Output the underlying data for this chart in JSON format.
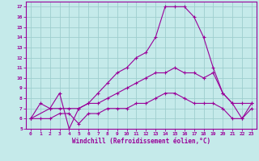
{
  "xlabel": "Windchill (Refroidissement éolien,°C)",
  "xlim": [
    -0.5,
    23.5
  ],
  "ylim": [
    5,
    17.5
  ],
  "xticks": [
    0,
    1,
    2,
    3,
    4,
    5,
    6,
    7,
    8,
    9,
    10,
    11,
    12,
    13,
    14,
    15,
    16,
    17,
    18,
    19,
    20,
    21,
    22,
    23
  ],
  "yticks": [
    5,
    6,
    7,
    8,
    9,
    10,
    11,
    12,
    13,
    14,
    15,
    16,
    17
  ],
  "background_color": "#c5eaea",
  "line_color": "#990099",
  "grid_color": "#9ecece",
  "line1_x": [
    0,
    1,
    2,
    3,
    4,
    5,
    6,
    7,
    8,
    9,
    10,
    11,
    12,
    13,
    14,
    15,
    16,
    17,
    18,
    19,
    20,
    21,
    22,
    23
  ],
  "line1_y": [
    6.0,
    7.5,
    7.0,
    8.5,
    5.0,
    7.0,
    7.5,
    8.5,
    9.5,
    10.5,
    11.0,
    12.0,
    12.5,
    14.0,
    17.0,
    17.0,
    17.0,
    16.0,
    14.0,
    11.0,
    8.5,
    7.5,
    6.0,
    7.5
  ],
  "line2_x": [
    0,
    2,
    3,
    4,
    5,
    6,
    7,
    8,
    9,
    10,
    11,
    12,
    13,
    14,
    15,
    16,
    17,
    18,
    19,
    20,
    21,
    22,
    23
  ],
  "line2_y": [
    6.0,
    7.0,
    7.0,
    7.0,
    7.0,
    7.5,
    7.5,
    8.0,
    8.5,
    9.0,
    9.5,
    10.0,
    10.5,
    10.5,
    11.0,
    10.5,
    10.5,
    10.0,
    10.5,
    8.5,
    7.5,
    7.5,
    7.5
  ],
  "line3_x": [
    0,
    1,
    2,
    3,
    4,
    5,
    6,
    7,
    8,
    9,
    10,
    11,
    12,
    13,
    14,
    15,
    16,
    17,
    18,
    19,
    20,
    21,
    22,
    23
  ],
  "line3_y": [
    6.0,
    6.0,
    6.0,
    6.5,
    6.5,
    5.5,
    6.5,
    6.5,
    7.0,
    7.0,
    7.0,
    7.5,
    7.5,
    8.0,
    8.5,
    8.5,
    8.0,
    7.5,
    7.5,
    7.5,
    7.0,
    6.0,
    6.0,
    7.0
  ]
}
